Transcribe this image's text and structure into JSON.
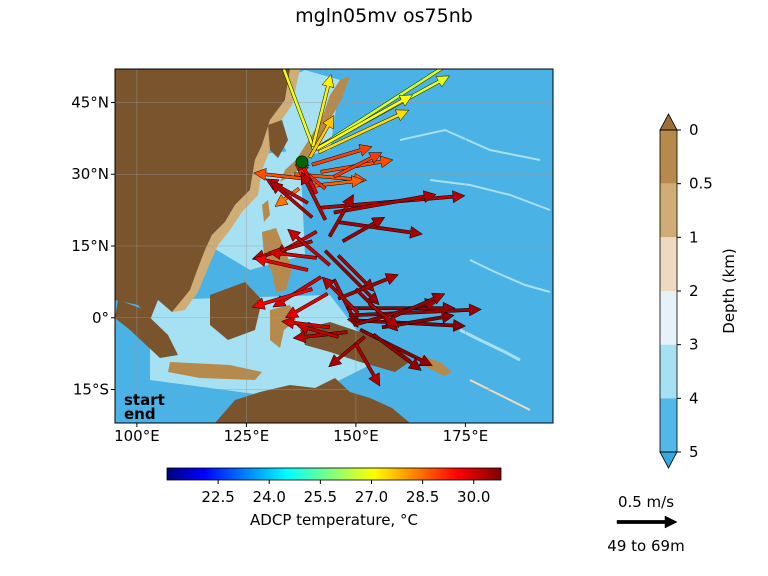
{
  "chart_data": {
    "type": "quiver-map",
    "title": "mgln05mv os75nb",
    "map": {
      "lon_range": [
        95,
        195
      ],
      "lat_range": [
        -22,
        52
      ],
      "x_ticks": [
        {
          "value": 100,
          "label": "100°E"
        },
        {
          "value": 125,
          "label": "125°E"
        },
        {
          "value": 150,
          "label": "150°E"
        },
        {
          "value": 175,
          "label": "175°E"
        }
      ],
      "y_ticks": [
        {
          "value": 45,
          "label": "45°N"
        },
        {
          "value": 30,
          "label": "30°N"
        },
        {
          "value": 15,
          "label": "15°N"
        },
        {
          "value": 0,
          "label": "0°"
        },
        {
          "value": -15,
          "label": "15°S"
        }
      ],
      "grid": true
    },
    "track_labels": {
      "start": "start",
      "end": "end",
      "start_color": "#008000",
      "end_color": "#ff0000"
    },
    "temperature_colorbar": {
      "label": "ADCP temperature, °C",
      "range": [
        21.0,
        30.8
      ],
      "ticks": [
        "22.5",
        "24.0",
        "25.5",
        "27.0",
        "28.5",
        "30.0"
      ]
    },
    "depth_colorbar": {
      "label": "Depth (km)",
      "ticks": [
        "0",
        "0.5",
        "1",
        "2",
        "3",
        "4",
        "5"
      ],
      "colors": [
        "#b58a4c",
        "#d0ad75",
        "#efd9c0",
        "#e6f1f8",
        "#a6e0f3",
        "#52b8e8"
      ]
    },
    "scale_arrow": {
      "label": "0.5 m/s",
      "depth_range": "49 to 69m",
      "speed": 0.5
    },
    "vectors": [
      {
        "lon": 140.5,
        "lat": 35.0,
        "u": -0.3,
        "v": 0.8,
        "t": 26.9
      },
      {
        "lon": 140.8,
        "lat": 35.2,
        "u": 1.4,
        "v": 0.9,
        "t": 26.6
      },
      {
        "lon": 141.2,
        "lat": 35.5,
        "u": 1.1,
        "v": 0.6,
        "t": 26.8
      },
      {
        "lon": 141.0,
        "lat": 35.3,
        "u": 0.8,
        "v": 0.45,
        "t": 27.1
      },
      {
        "lon": 141.5,
        "lat": 34.6,
        "u": 0.75,
        "v": 0.35,
        "t": 27.4
      },
      {
        "lon": 140.2,
        "lat": 35.8,
        "u": 0.15,
        "v": 0.6,
        "t": 27.2
      },
      {
        "lon": 139.5,
        "lat": 33.5,
        "u": 0.2,
        "v": 0.35,
        "t": 27.6
      },
      {
        "lon": 140.0,
        "lat": 32.0,
        "u": 0.5,
        "v": 0.15,
        "t": 28.9
      },
      {
        "lon": 136.0,
        "lat": 30.0,
        "u": 0.6,
        "v": -0.05,
        "t": 28.7
      },
      {
        "lon": 142.0,
        "lat": 30.5,
        "u": 0.6,
        "v": 0.1,
        "t": 28.8
      },
      {
        "lon": 139.0,
        "lat": 29.0,
        "u": -0.45,
        "v": 0.05,
        "t": 28.8
      },
      {
        "lon": 145.0,
        "lat": 29.5,
        "u": 0.4,
        "v": 0.2,
        "t": 29.0
      },
      {
        "lon": 139.5,
        "lat": 27.5,
        "u": 0.45,
        "v": 0.05,
        "t": 28.6
      },
      {
        "lon": 137.0,
        "lat": 27.0,
        "u": -0.2,
        "v": -0.15,
        "t": 28.4
      },
      {
        "lon": 143.0,
        "lat": 27.0,
        "u": -0.25,
        "v": 0.2,
        "t": 29.1
      },
      {
        "lon": 141.0,
        "lat": 26.0,
        "u": -0.15,
        "v": 0.3,
        "t": 29.6
      },
      {
        "lon": 139.0,
        "lat": 24.0,
        "u": -0.35,
        "v": 0.2,
        "t": 30.1
      },
      {
        "lon": 142.0,
        "lat": 23.0,
        "u": 1.2,
        "v": 0.1,
        "t": 30.2
      },
      {
        "lon": 145.0,
        "lat": 22.0,
        "u": 0.85,
        "v": 0.15,
        "t": 30.3
      },
      {
        "lon": 146.0,
        "lat": 20.0,
        "u": 0.7,
        "v": -0.1,
        "t": 30.4
      },
      {
        "lon": 143.0,
        "lat": 20.5,
        "u": -0.2,
        "v": 0.4,
        "t": 30.2
      },
      {
        "lon": 140.0,
        "lat": 21.0,
        "u": -0.35,
        "v": 0.3,
        "t": 30.3
      },
      {
        "lon": 141.0,
        "lat": 18.0,
        "u": -0.35,
        "v": -0.2,
        "t": 30.0
      },
      {
        "lon": 144.0,
        "lat": 17.0,
        "u": 0.2,
        "v": 0.35,
        "t": 30.4
      },
      {
        "lon": 147.0,
        "lat": 16.0,
        "u": 0.35,
        "v": 0.2,
        "t": 30.5
      },
      {
        "lon": 140.0,
        "lat": 16.0,
        "u": -0.5,
        "v": -0.15,
        "t": 30.2
      },
      {
        "lon": 143.0,
        "lat": 14.0,
        "u": 0.45,
        "v": -0.45,
        "t": 30.6
      },
      {
        "lon": 146.0,
        "lat": 13.0,
        "u": 0.3,
        "v": -0.3,
        "t": 30.4
      },
      {
        "lon": 141.0,
        "lat": 12.5,
        "u": -0.4,
        "v": 0.05,
        "t": 29.9
      },
      {
        "lon": 144.0,
        "lat": 11.0,
        "u": -0.35,
        "v": 0.3,
        "t": 30.1
      },
      {
        "lon": 139.0,
        "lat": 10.0,
        "u": -0.45,
        "v": 0.1,
        "t": 29.7
      },
      {
        "lon": 142.0,
        "lat": 8.5,
        "u": -0.4,
        "v": -0.25,
        "t": 29.9
      },
      {
        "lon": 145.0,
        "lat": 8.0,
        "u": 0.2,
        "v": -0.4,
        "t": 30.3
      },
      {
        "lon": 140.0,
        "lat": 6.0,
        "u": -0.5,
        "v": -0.15,
        "t": 29.6
      },
      {
        "lon": 143.5,
        "lat": 5.0,
        "u": -0.35,
        "v": -0.2,
        "t": 29.8
      },
      {
        "lon": 146.0,
        "lat": 4.0,
        "u": 0.5,
        "v": 0.2,
        "t": 30.4
      },
      {
        "lon": 148.0,
        "lat": 2.0,
        "u": 0.9,
        "v": 0.0,
        "t": 30.6
      },
      {
        "lon": 148.5,
        "lat": 0.5,
        "u": 1.1,
        "v": 0.05,
        "t": 30.5
      },
      {
        "lon": 149.0,
        "lat": -0.5,
        "u": 0.95,
        "v": -0.05,
        "t": 30.7
      },
      {
        "lon": 149.5,
        "lat": -1.5,
        "u": 0.7,
        "v": 0.2,
        "t": 30.5
      },
      {
        "lon": 150.5,
        "lat": 1.0,
        "u": -0.3,
        "v": 0.3,
        "t": 30.3
      },
      {
        "lon": 151.0,
        "lat": -2.5,
        "u": 0.6,
        "v": -0.3,
        "t": 30.6
      },
      {
        "lon": 148.0,
        "lat": -3.0,
        "u": -0.45,
        "v": -0.05,
        "t": 30.2
      },
      {
        "lon": 152.0,
        "lat": -4.0,
        "u": -0.3,
        "v": -0.25,
        "t": 30.4
      },
      {
        "lon": 154.0,
        "lat": -3.5,
        "u": 0.4,
        "v": -0.3,
        "t": 30.6
      },
      {
        "lon": 156.0,
        "lat": -2.0,
        "u": 0.6,
        "v": 0.1,
        "t": 30.7
      },
      {
        "lon": 158.0,
        "lat": 0.0,
        "u": 0.45,
        "v": 0.2,
        "t": 30.5
      },
      {
        "lon": 150.0,
        "lat": -5.5,
        "u": 0.2,
        "v": -0.35,
        "t": 30.3
      },
      {
        "lon": 146.0,
        "lat": -4.0,
        "u": -0.35,
        "v": 0.1,
        "t": 30.1
      },
      {
        "lon": 144.0,
        "lat": -2.0,
        "u": -0.4,
        "v": 0.05,
        "t": 29.9
      },
      {
        "lon": 150.0,
        "lat": 6.0,
        "u": 0.35,
        "v": -0.35,
        "t": 30.5
      },
      {
        "lon": 153.0,
        "lat": 3.0,
        "u": 0.25,
        "v": -0.2,
        "t": 30.3
      }
    ]
  }
}
